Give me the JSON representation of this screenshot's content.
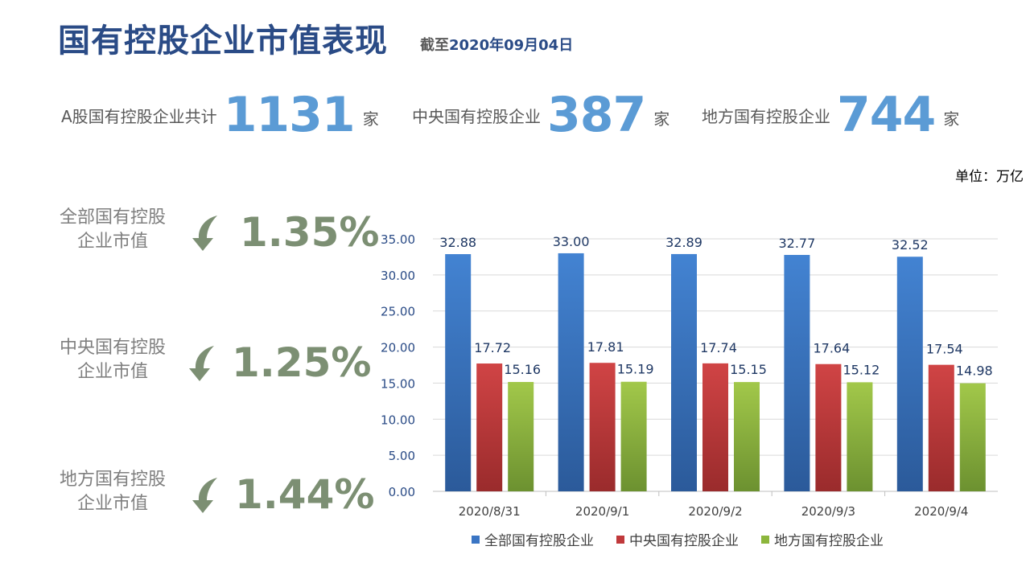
{
  "header": {
    "title": "国有控股企业市值表现",
    "subtitle_prefix": "截至",
    "subtitle_date": "2020年09月04日"
  },
  "stats": [
    {
      "label": "A股国有控股企业共计",
      "value": "1131",
      "unit": "家"
    },
    {
      "label": "中央国有控股企业",
      "value": "387",
      "unit": "家"
    },
    {
      "label": "地方国有控股企业",
      "value": "744",
      "unit": "家"
    }
  ],
  "unit_note": "单位：万亿",
  "changes": [
    {
      "label_line1": "全部国有控股",
      "label_line2": "企业市值",
      "direction": "down",
      "value": "1.35%"
    },
    {
      "label_line1": "中央国有控股",
      "label_line2": "企业市值",
      "direction": "down",
      "value": "1.25%"
    },
    {
      "label_line1": "地方国有控股",
      "label_line2": "企业市值",
      "direction": "down",
      "value": "1.44%"
    }
  ],
  "colors": {
    "title": "#2a4b86",
    "stat_number": "#5b9bd5",
    "change_value": "#7c8f73",
    "series_all": "#3a75c4",
    "series_central": "#c0393b",
    "series_local": "#8cb63c"
  },
  "chart_data": {
    "type": "bar",
    "categories": [
      "2020/8/31",
      "2020/9/1",
      "2020/9/2",
      "2020/9/3",
      "2020/9/4"
    ],
    "series": [
      {
        "name": "全部国有控股企业",
        "values": [
          32.88,
          33.0,
          32.89,
          32.77,
          32.52
        ],
        "labels": [
          "32.88",
          "33.00",
          "32.89",
          "32.77",
          "32.52"
        ]
      },
      {
        "name": "中央国有控股企业",
        "values": [
          17.72,
          17.81,
          17.74,
          17.64,
          17.54
        ],
        "labels": [
          "17.72",
          "17.81",
          "17.74",
          "17.64",
          "17.54"
        ]
      },
      {
        "name": "地方国有控股企业",
        "values": [
          15.16,
          15.19,
          15.15,
          15.12,
          14.98
        ],
        "labels": [
          "15.16",
          "15.19",
          "15.15",
          "15.12",
          "14.98"
        ]
      }
    ],
    "ylim": [
      0,
      35
    ],
    "yticks": [
      "0.00",
      "5.00",
      "10.00",
      "15.00",
      "20.00",
      "25.00",
      "30.00",
      "35.00"
    ],
    "grid": true,
    "legend": "bottom"
  }
}
